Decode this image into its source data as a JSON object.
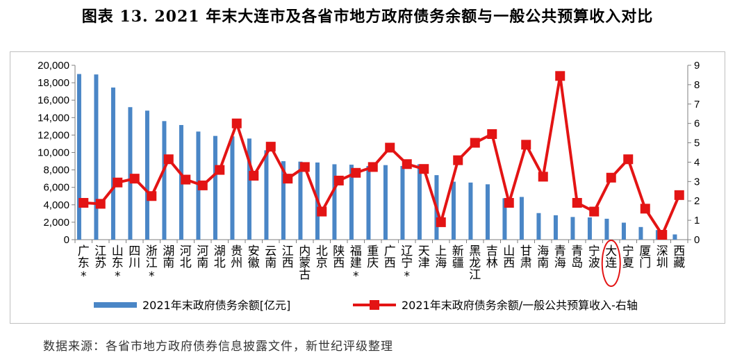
{
  "title": "图表 13. 2021 年末大连市及各省市地方政府债务余额与一般公共预算收入对比",
  "source": "数据来源：各省市地方政府债券信息披露文件，新世纪评级整理",
  "colors": {
    "bar": "#4a86c6",
    "line": "#e31414",
    "highlight": "#e31414"
  },
  "chart_data": {
    "type": "bar+line",
    "categories": [
      "广东",
      "江苏",
      "山东",
      "四川",
      "浙江",
      "湖南",
      "河北",
      "河南",
      "湖北",
      "贵州",
      "安徽",
      "云南",
      "江西",
      "内蒙古",
      "北京",
      "陕西",
      "福建",
      "重庆",
      "广西",
      "辽宁",
      "天津",
      "上海",
      "新疆",
      "黑龙江",
      "吉林",
      "山西",
      "甘肃",
      "海南",
      "青海",
      "青岛",
      "宁波",
      "大连",
      "宁夏",
      "厦门",
      "深圳",
      "西藏"
    ],
    "category_marks": [
      "*",
      "",
      "*",
      "",
      "*",
      "",
      "",
      "",
      "",
      "",
      "",
      "",
      "",
      "",
      "",
      "",
      "*",
      "",
      "",
      "*",
      "",
      "",
      "",
      "",
      "",
      "",
      "",
      "",
      "",
      "",
      "",
      "",
      "",
      "",
      "",
      ""
    ],
    "highlighted_category": "大连",
    "series": [
      {
        "name": "2021年末政府债务余额[亿元]",
        "type": "bar",
        "axis": "left",
        "values": [
          19000,
          18950,
          17450,
          15200,
          14800,
          13600,
          13150,
          12400,
          11900,
          11850,
          11600,
          10250,
          9000,
          8950,
          8850,
          8650,
          8600,
          8450,
          8550,
          8450,
          8650,
          7400,
          6650,
          6550,
          6350,
          4750,
          4900,
          3050,
          2800,
          2600,
          2550,
          2400,
          1950,
          1450,
          1100,
          600
        ]
      },
      {
        "name": "2021年末政府债务余额/一般公共预算收入-右轴",
        "type": "line",
        "axis": "right",
        "values": [
          1.9,
          1.85,
          2.95,
          3.15,
          2.25,
          4.15,
          3.1,
          2.8,
          3.6,
          6.0,
          3.3,
          4.8,
          3.15,
          3.75,
          1.45,
          3.05,
          3.45,
          3.75,
          4.75,
          3.9,
          3.65,
          0.9,
          4.1,
          5.0,
          5.45,
          1.9,
          4.9,
          3.25,
          8.45,
          1.9,
          1.45,
          3.2,
          4.15,
          1.6,
          0.25,
          2.3
        ]
      }
    ],
    "y_left": {
      "min": 0,
      "max": 20000,
      "step": 2000,
      "ticks": [
        "0",
        "2,000",
        "4,000",
        "6,000",
        "8,000",
        "10,000",
        "12,000",
        "14,000",
        "16,000",
        "18,000",
        "20,000"
      ]
    },
    "y_right": {
      "min": 0,
      "max": 9,
      "step": 1,
      "ticks": [
        "0",
        "1",
        "2",
        "3",
        "4",
        "5",
        "6",
        "7",
        "8",
        "9"
      ]
    },
    "legend": {
      "position": "bottom"
    },
    "grid": false
  }
}
